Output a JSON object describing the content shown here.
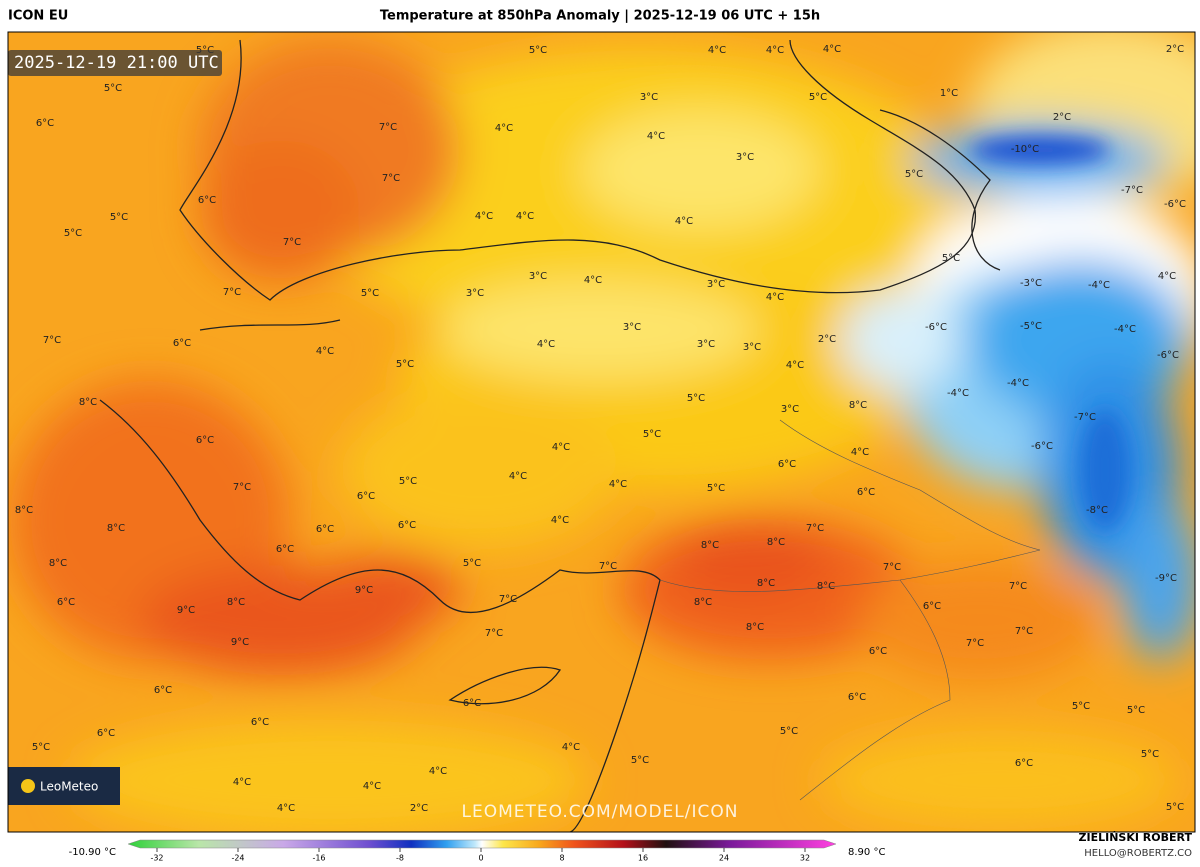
{
  "header": {
    "model": "ICON EU",
    "title": "Temperature at 850hPa Anomaly | 2025-12-19 06 UTC + 15h"
  },
  "map": {
    "timestamp": "2025-12-19 21:00 UTC",
    "watermark": "LEOMETEO.COM/MODEL/ICON",
    "logo": "LeoMeteo",
    "labels": [
      "5°C",
      "5°C",
      "6°C",
      "7°C",
      "7°C",
      "6°C",
      "5°C",
      "5°C",
      "7°C",
      "7°C",
      "5°C",
      "7°C",
      "6°C",
      "4°C",
      "5°C",
      "8°C",
      "6°C",
      "7°C",
      "8°C",
      "6°C",
      "6°C",
      "6°C",
      "6°C",
      "5°C",
      "9°C",
      "8°C",
      "9°C",
      "9°C",
      "7°C",
      "7°C",
      "6°C",
      "6°C",
      "6°C",
      "6°C",
      "5°C",
      "4°C",
      "4°C",
      "2°C",
      "4°C",
      "4°C",
      "4°C",
      "5°C",
      "4°C",
      "4°C",
      "4°C",
      "3°C",
      "4°C",
      "4°C",
      "3°C",
      "4°C",
      "4°C",
      "4°C",
      "5°C",
      "5°C",
      "1°C",
      "2°C",
      "2°C",
      "-10°C",
      "-7°C",
      "-6°C",
      "5°C",
      "3°C",
      "4°C",
      "3°C",
      "3°C",
      "4°C",
      "3°C",
      "4°C",
      "3°C",
      "3°C",
      "2°C",
      "4°C",
      "5°C",
      "3°C",
      "8°C",
      "5°C",
      "4°C",
      "4°C",
      "5°C",
      "4°C",
      "6°C",
      "4°C",
      "5°C",
      "6°C",
      "4°C",
      "7°C",
      "8°C",
      "8°C",
      "7°C",
      "8°C",
      "8°C",
      "8°C",
      "8°C",
      "7°C",
      "-3°C",
      "-4°C",
      "4°C",
      "-6°C",
      "-5°C",
      "-4°C",
      "-6°C",
      "-4°C",
      "-4°C",
      "-7°C",
      "-6°C",
      "-8°C",
      "-9°C",
      "7°C",
      "6°C",
      "7°C",
      "7°C",
      "6°C",
      "6°C",
      "5°C",
      "5°C",
      "5°C",
      "6°C",
      "5°C",
      "5°C",
      "5°C",
      "8°C",
      "8°C",
      "6°C"
    ]
  },
  "colorbar": {
    "min_label": "-10.90 °C",
    "max_label": "8.90 °C",
    "ticks": [
      -32,
      -24,
      -16,
      -8,
      0,
      8,
      16,
      24,
      32
    ]
  },
  "credit": {
    "author": "ZIELIŃSKI ROBERT",
    "email": "HELLO@ROBERTZ.CO"
  }
}
